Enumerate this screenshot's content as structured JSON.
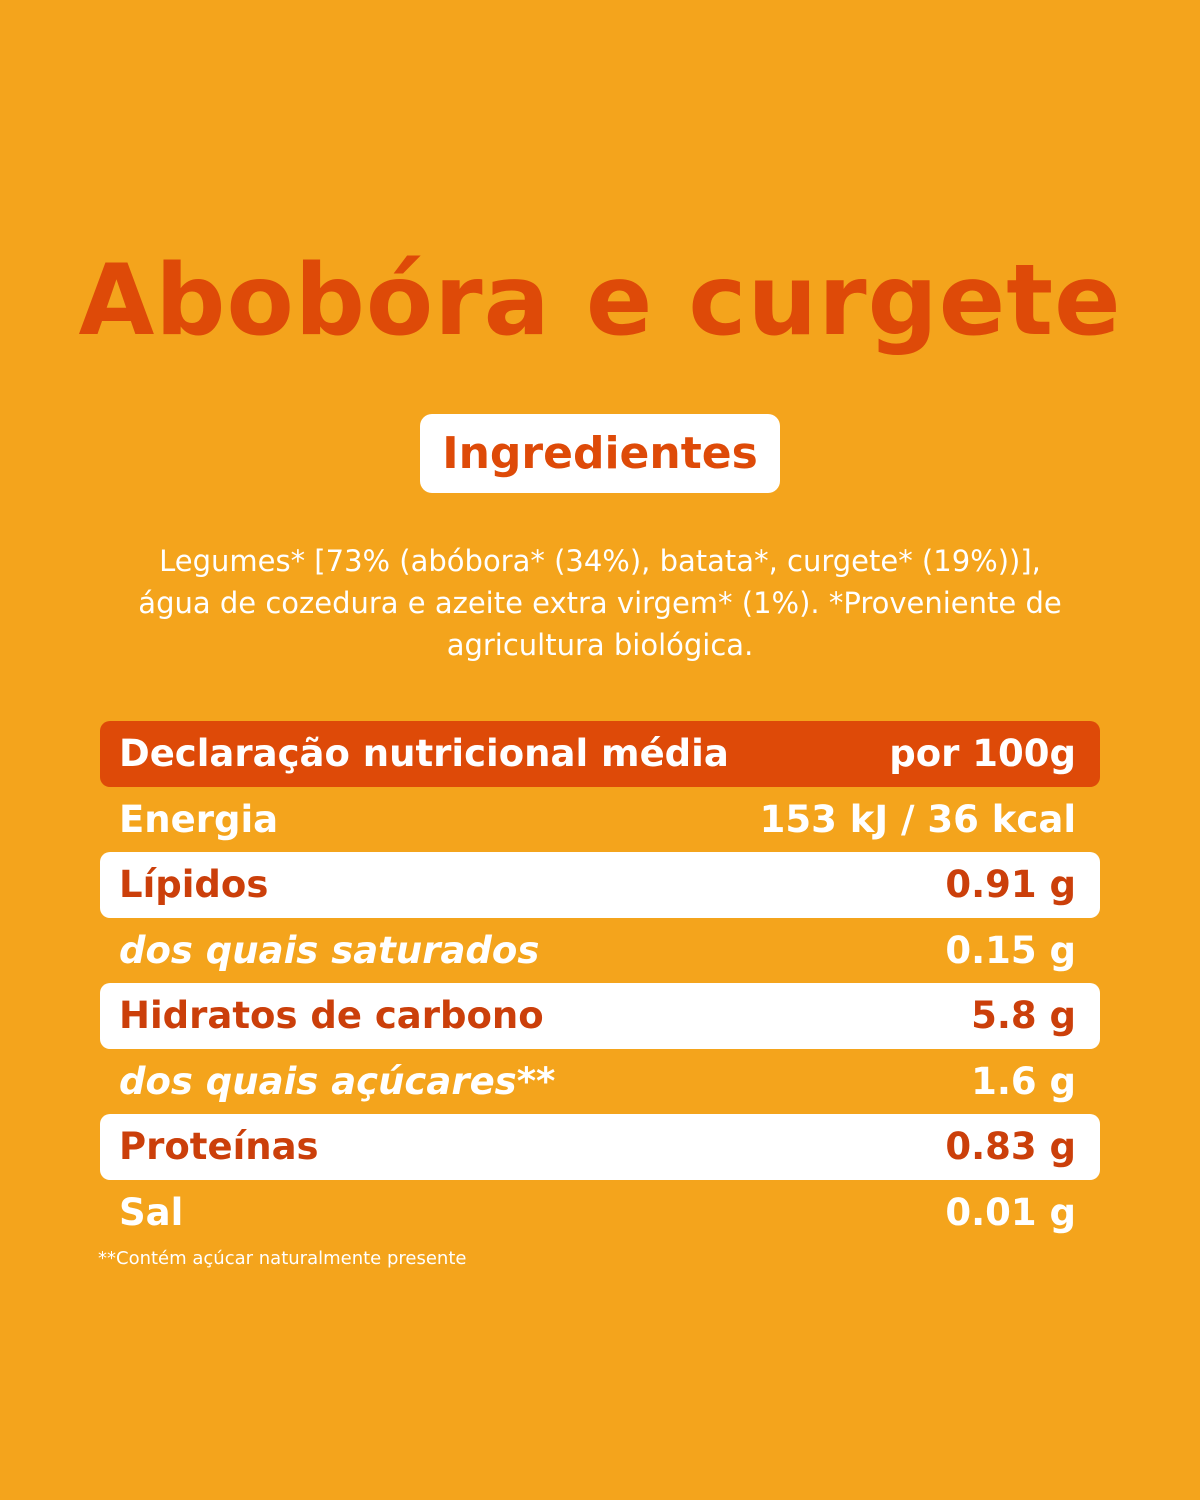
{
  "title": "Abobóra e curgete",
  "ingredients_heading": "Ingredientes",
  "ingredients_lines": [
    "Legumes* [73% (abóbora* (34%), batata*, curgete* (19%))],",
    "água de cozedura e azeite extra virgem* (1%). *Proveniente de",
    "agricultura biológica."
  ],
  "nutrition": {
    "header": {
      "label": "Declaração nutricional média",
      "value": "por 100g"
    },
    "rows": [
      {
        "label": "Energia",
        "value": "153 kJ / 36 kcal"
      },
      {
        "label": "Lípidos",
        "value": "0.91 g"
      },
      {
        "label": "dos quais saturados",
        "value": "0.15 g"
      },
      {
        "label": "Hidratos de carbono",
        "value": "5.8 g"
      },
      {
        "label": "dos quais açúcares**",
        "value": "1.6 g"
      },
      {
        "label": "Proteínas",
        "value": "0.83 g"
      },
      {
        "label": "Sal",
        "value": "0.01 g"
      }
    ]
  },
  "footnote": "**Contém açúcar naturalmente presente",
  "colors": {
    "background": "#F4A41C",
    "accent": "#DE4A08",
    "highlight_row": "#FFFFFF"
  }
}
